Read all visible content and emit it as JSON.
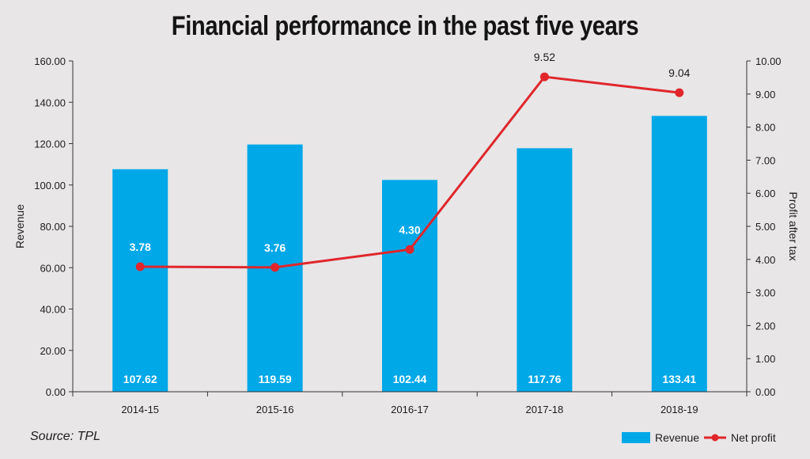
{
  "chart_data": {
    "type": "bar+line",
    "title": "Financial performance in the past five years",
    "categories": [
      "2014-15",
      "2015-16",
      "2016-17",
      "2017-18",
      "2018-19"
    ],
    "series": [
      {
        "name": "Revenue",
        "type": "bar",
        "axis": "left",
        "values": [
          107.62,
          119.59,
          102.44,
          117.76,
          133.41
        ],
        "labels": [
          "107.62",
          "119.59",
          "102.44",
          "117.76",
          "133.41"
        ]
      },
      {
        "name": "Net profit",
        "type": "line",
        "axis": "right",
        "values": [
          3.78,
          3.76,
          4.3,
          9.52,
          9.04
        ],
        "labels": [
          "3.78",
          "3.76",
          "4.30",
          "9.52",
          "9.04"
        ]
      }
    ],
    "ylabel": "Revenue",
    "y2label": "Profit after tax",
    "ylim": [
      0,
      160
    ],
    "y2lim": [
      0,
      10
    ],
    "yticks": [
      "0.00",
      "20.00",
      "40.00",
      "60.00",
      "80.00",
      "100.00",
      "120.00",
      "140.00",
      "160.00"
    ],
    "y2ticks": [
      "0.00",
      "1.00",
      "2.00",
      "3.00",
      "4.00",
      "5.00",
      "6.00",
      "7.00",
      "8.00",
      "9.00",
      "10.00"
    ],
    "legend": [
      "Revenue",
      "Net profit"
    ],
    "legend_position": "bottom-right",
    "source": "Source: TPL",
    "colors": {
      "bar": "#00a8e8",
      "line": "#e0262b",
      "axis": "#333333"
    }
  }
}
